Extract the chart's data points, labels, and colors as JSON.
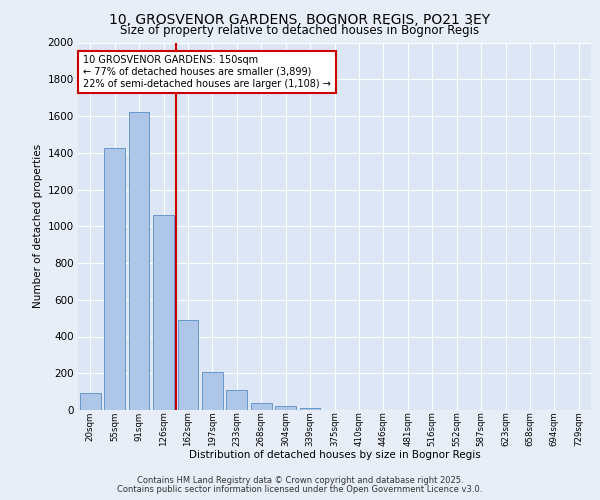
{
  "title1": "10, GROSVENOR GARDENS, BOGNOR REGIS, PO21 3EY",
  "title2": "Size of property relative to detached houses in Bognor Regis",
  "xlabel": "Distribution of detached houses by size in Bognor Regis",
  "ylabel": "Number of detached properties",
  "bar_labels": [
    "20sqm",
    "55sqm",
    "91sqm",
    "126sqm",
    "162sqm",
    "197sqm",
    "233sqm",
    "268sqm",
    "304sqm",
    "339sqm",
    "375sqm",
    "410sqm",
    "446sqm",
    "481sqm",
    "516sqm",
    "552sqm",
    "587sqm",
    "623sqm",
    "658sqm",
    "694sqm",
    "729sqm"
  ],
  "bar_values": [
    90,
    1425,
    1620,
    1060,
    490,
    205,
    110,
    40,
    22,
    12,
    0,
    0,
    0,
    0,
    0,
    0,
    0,
    0,
    0,
    0,
    0
  ],
  "bar_color": "#aec6e8",
  "bar_edgecolor": "#5a8fc2",
  "vline_color": "#cc0000",
  "annotation_text": "10 GROSVENOR GARDENS: 150sqm\n← 77% of detached houses are smaller (3,899)\n22% of semi-detached houses are larger (1,108) →",
  "annotation_box_edgecolor": "#cc0000",
  "ylim": [
    0,
    2000
  ],
  "yticks": [
    0,
    200,
    400,
    600,
    800,
    1000,
    1200,
    1400,
    1600,
    1800,
    2000
  ],
  "bg_color": "#e8eef7",
  "plot_bg_color": "#dce6f5",
  "grid_color": "#ffffff",
  "footer1": "Contains HM Land Registry data © Crown copyright and database right 2025.",
  "footer2": "Contains public sector information licensed under the Open Government Licence v3.0."
}
